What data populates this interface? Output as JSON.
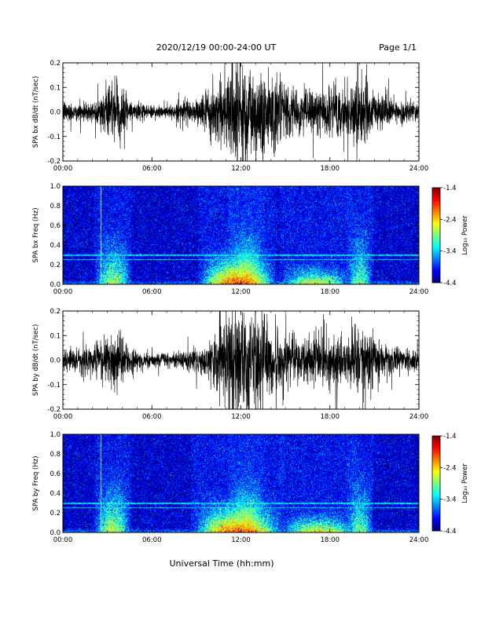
{
  "header": {
    "date_range": "2020/12/19  00:00-24:00 UT",
    "page": "Page 1/1"
  },
  "xlabel": "Universal Time (hh:mm)",
  "x_ticks": [
    "00:00",
    "06:00",
    "12:00",
    "18:00",
    "24:00"
  ],
  "colorbar": {
    "label": "Log₁₀ Power",
    "ticks": [
      "-1.4",
      "-2.4",
      "-3.4",
      "-4.4"
    ],
    "range": [
      -4.4,
      -1.4
    ]
  },
  "chart_data": [
    {
      "type": "line",
      "ylabel": "SPA bx dB/dt (nT/sec)",
      "xlim": [
        0,
        24
      ],
      "ylim": [
        -0.2,
        0.2
      ],
      "y_ticks": [
        "0.2",
        "0.1",
        "0.0",
        "-0.1",
        "-0.2"
      ],
      "envelope": {
        "hours": [
          0,
          1,
          2,
          2.5,
          3,
          3.5,
          4,
          4.5,
          5,
          6,
          7,
          8,
          9,
          10,
          11,
          12,
          13,
          14,
          15,
          16,
          17,
          18,
          19,
          20,
          21,
          22,
          23,
          24
        ],
        "amplitude": [
          0.05,
          0.04,
          0.05,
          0.07,
          0.09,
          0.13,
          0.11,
          0.06,
          0.04,
          0.03,
          0.03,
          0.04,
          0.06,
          0.1,
          0.2,
          0.25,
          0.22,
          0.2,
          0.12,
          0.09,
          0.09,
          0.1,
          0.12,
          0.16,
          0.1,
          0.06,
          0.05,
          0.04
        ]
      }
    },
    {
      "type": "heatmap",
      "ylabel": "SPA bx Freq (Hz)",
      "xlim": [
        0,
        24
      ],
      "ylim": [
        0,
        1.0
      ],
      "y_ticks": [
        "1.0",
        "0.8",
        "0.6",
        "0.4",
        "0.2",
        "0.0"
      ],
      "z_range": [
        -4.4,
        -1.4
      ],
      "bands": [
        {
          "start": 2.5,
          "end": 4.2,
          "top_hz": 0.75,
          "peak": -2.6
        },
        {
          "start": 9.5,
          "end": 14.0,
          "top_hz": 0.5,
          "peak": -1.6
        },
        {
          "start": 11.5,
          "end": 13.2,
          "top_hz": 0.85,
          "peak": -2.3
        },
        {
          "start": 15.0,
          "end": 19.0,
          "top_hz": 0.3,
          "peak": -2.3
        },
        {
          "start": 19.5,
          "end": 20.5,
          "top_hz": 0.9,
          "peak": -2.8
        }
      ]
    },
    {
      "type": "line",
      "ylabel": "SPA by dB/dt (nT/sec)",
      "xlim": [
        0,
        24
      ],
      "ylim": [
        -0.2,
        0.2
      ],
      "y_ticks": [
        "0.2",
        "0.1",
        "0.0",
        "-0.1",
        "-0.2"
      ],
      "envelope": {
        "hours": [
          0,
          1,
          2,
          2.5,
          3,
          3.5,
          4,
          4.5,
          5,
          6,
          7,
          8,
          9,
          10,
          11,
          12,
          13,
          14,
          15,
          16,
          17,
          18,
          19,
          20,
          21,
          22,
          23,
          24
        ],
        "amplitude": [
          0.05,
          0.05,
          0.07,
          0.09,
          0.12,
          0.14,
          0.11,
          0.06,
          0.04,
          0.03,
          0.03,
          0.04,
          0.06,
          0.1,
          0.2,
          0.24,
          0.22,
          0.2,
          0.12,
          0.1,
          0.1,
          0.11,
          0.12,
          0.15,
          0.1,
          0.06,
          0.05,
          0.04
        ]
      }
    },
    {
      "type": "heatmap",
      "ylabel": "SPA by Freq (Hz)",
      "xlim": [
        0,
        24
      ],
      "ylim": [
        0,
        1.0
      ],
      "y_ticks": [
        "1.0",
        "0.8",
        "0.6",
        "0.4",
        "0.2",
        "0.0"
      ],
      "z_range": [
        -4.4,
        -1.4
      ],
      "bands": [
        {
          "start": 2.5,
          "end": 4.2,
          "top_hz": 0.8,
          "peak": -2.5
        },
        {
          "start": 9.0,
          "end": 14.5,
          "top_hz": 0.5,
          "peak": -1.7
        },
        {
          "start": 11.5,
          "end": 13.2,
          "top_hz": 0.85,
          "peak": -2.3
        },
        {
          "start": 15.0,
          "end": 19.5,
          "top_hz": 0.3,
          "peak": -2.2
        },
        {
          "start": 19.5,
          "end": 20.5,
          "top_hz": 0.9,
          "peak": -2.8
        }
      ]
    }
  ]
}
